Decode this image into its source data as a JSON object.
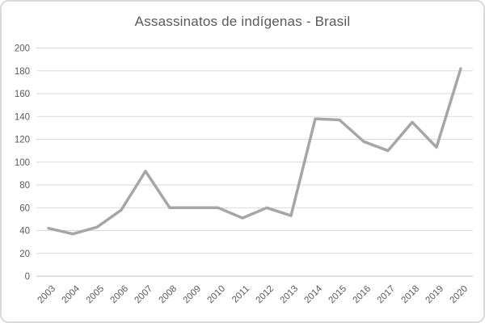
{
  "chart_data": {
    "type": "line",
    "title": "Assassinatos de indígenas - Brasil",
    "categories": [
      "2003",
      "2004",
      "2005",
      "2006",
      "2007",
      "2008",
      "2009",
      "2010",
      "2011",
      "2012",
      "2013",
      "2014",
      "2015",
      "2016",
      "2017",
      "2018",
      "2019",
      "2020"
    ],
    "values": [
      42,
      37,
      43,
      58,
      92,
      60,
      60,
      60,
      51,
      60,
      53,
      138,
      137,
      118,
      110,
      135,
      113,
      182
    ],
    "xlabel": "",
    "ylabel": "",
    "ylim": [
      0,
      200
    ],
    "ytick_step": 20,
    "ytick_labels": [
      "0",
      "20",
      "40",
      "60",
      "80",
      "100",
      "120",
      "140",
      "160",
      "180",
      "200"
    ],
    "grid": true,
    "legend": false,
    "x_label_rotation_deg": 45,
    "colors": {
      "series_line": "#a6a6a6",
      "gridline": "#d9d9d9",
      "axis_line": "#c0c0c0",
      "tick_text": "#595959",
      "title_text": "#595959",
      "frame_border": "#d9d9d9",
      "background": "#ffffff"
    }
  }
}
